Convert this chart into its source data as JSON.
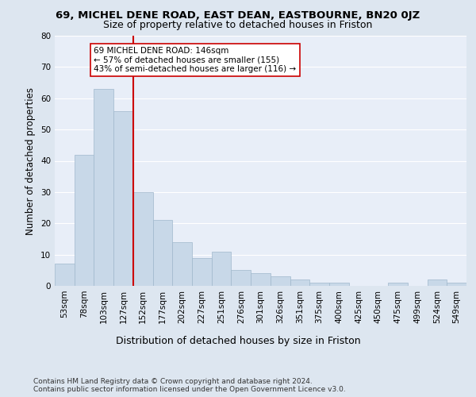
{
  "title_line1": "69, MICHEL DENE ROAD, EAST DEAN, EASTBOURNE, BN20 0JZ",
  "title_line2": "Size of property relative to detached houses in Friston",
  "xlabel": "Distribution of detached houses by size in Friston",
  "ylabel": "Number of detached properties",
  "categories": [
    "53sqm",
    "78sqm",
    "103sqm",
    "127sqm",
    "152sqm",
    "177sqm",
    "202sqm",
    "227sqm",
    "251sqm",
    "276sqm",
    "301sqm",
    "326sqm",
    "351sqm",
    "375sqm",
    "400sqm",
    "425sqm",
    "450sqm",
    "475sqm",
    "499sqm",
    "524sqm",
    "549sqm"
  ],
  "values": [
    7,
    42,
    63,
    56,
    30,
    21,
    14,
    9,
    11,
    5,
    4,
    3,
    2,
    1,
    1,
    0,
    0,
    1,
    0,
    2,
    1
  ],
  "bar_color": "#c8d8e8",
  "bar_edge_color": "#a0b8cc",
  "vline_x": 3.5,
  "vline_color": "#cc0000",
  "annotation_text": "69 MICHEL DENE ROAD: 146sqm\n← 57% of detached houses are smaller (155)\n43% of semi-detached houses are larger (116) →",
  "annotation_box_color": "#ffffff",
  "annotation_box_edge": "#cc0000",
  "ylim": [
    0,
    80
  ],
  "yticks": [
    0,
    10,
    20,
    30,
    40,
    50,
    60,
    70,
    80
  ],
  "footer": "Contains HM Land Registry data © Crown copyright and database right 2024.\nContains public sector information licensed under the Open Government Licence v3.0.",
  "bg_color": "#dde6f0",
  "plot_bg_color": "#e8eef8",
  "grid_color": "#ffffff",
  "title1_fontsize": 9.5,
  "title2_fontsize": 9.0,
  "ylabel_fontsize": 8.5,
  "xlabel_fontsize": 9.0,
  "tick_fontsize": 7.5,
  "annotation_fontsize": 7.5,
  "footer_fontsize": 6.5
}
